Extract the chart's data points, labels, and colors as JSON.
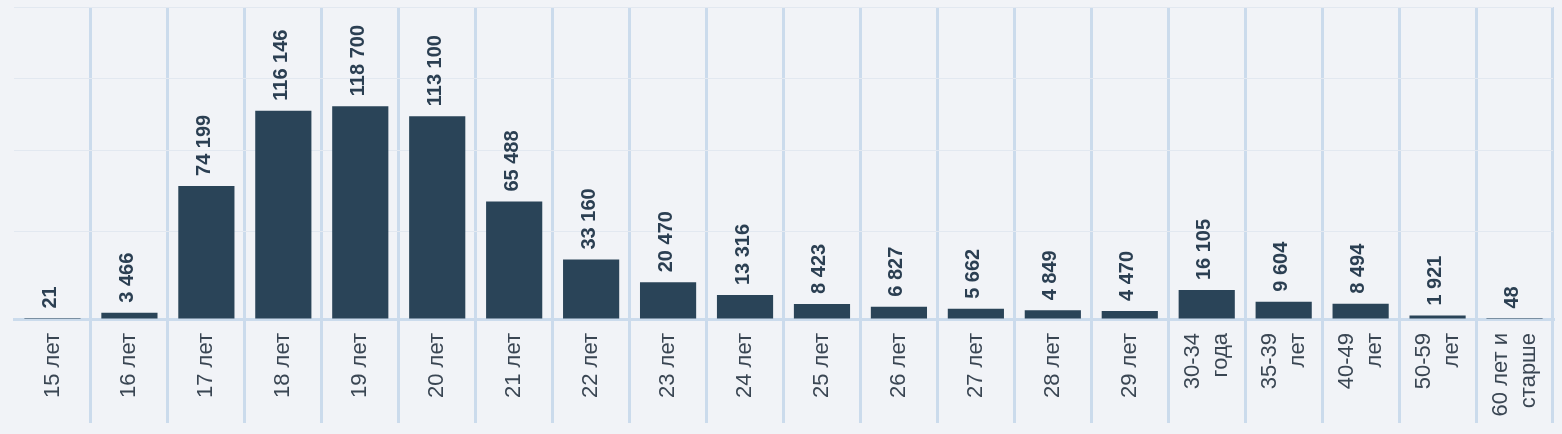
{
  "chart_data": {
    "type": "bar",
    "categories": [
      "15 лет",
      "16 лет",
      "17 лет",
      "18 лет",
      "19 лет",
      "20 лет",
      "21 лет",
      "22 лет",
      "23 лет",
      "24 лет",
      "25 лет",
      "26 лет",
      "27 лет",
      "28 лет",
      "29 лет",
      "30-34 года",
      "35-39 лет",
      "40-49 лет",
      "50-59 лет",
      "60 лет и старше"
    ],
    "values": [
      21,
      3466,
      74199,
      116146,
      118700,
      113100,
      65488,
      33160,
      20470,
      13316,
      8423,
      6827,
      5662,
      4849,
      4470,
      16105,
      9604,
      8494,
      1921,
      48
    ],
    "value_labels": [
      "21",
      "3 466",
      "74 199",
      "116 146",
      "118 700",
      "113 100",
      "65 488",
      "33 160",
      "20 470",
      "13 316",
      "8 423",
      "6 827",
      "5 662",
      "4 849",
      "4 470",
      "16 105",
      "9 604",
      "8 494",
      "1 921",
      "48"
    ],
    "color": "#2a4458",
    "ylim": [
      0,
      174000
    ],
    "yticks": [
      {
        "value": 0,
        "label": null
      },
      {
        "value": 49000,
        "label": null
      },
      {
        "value": 94000,
        "label": null
      },
      {
        "value": 134000,
        "label": null
      },
      {
        "value": 174000,
        "label": null
      }
    ],
    "grid": true,
    "legend": false,
    "tick_labels": "x"
  }
}
